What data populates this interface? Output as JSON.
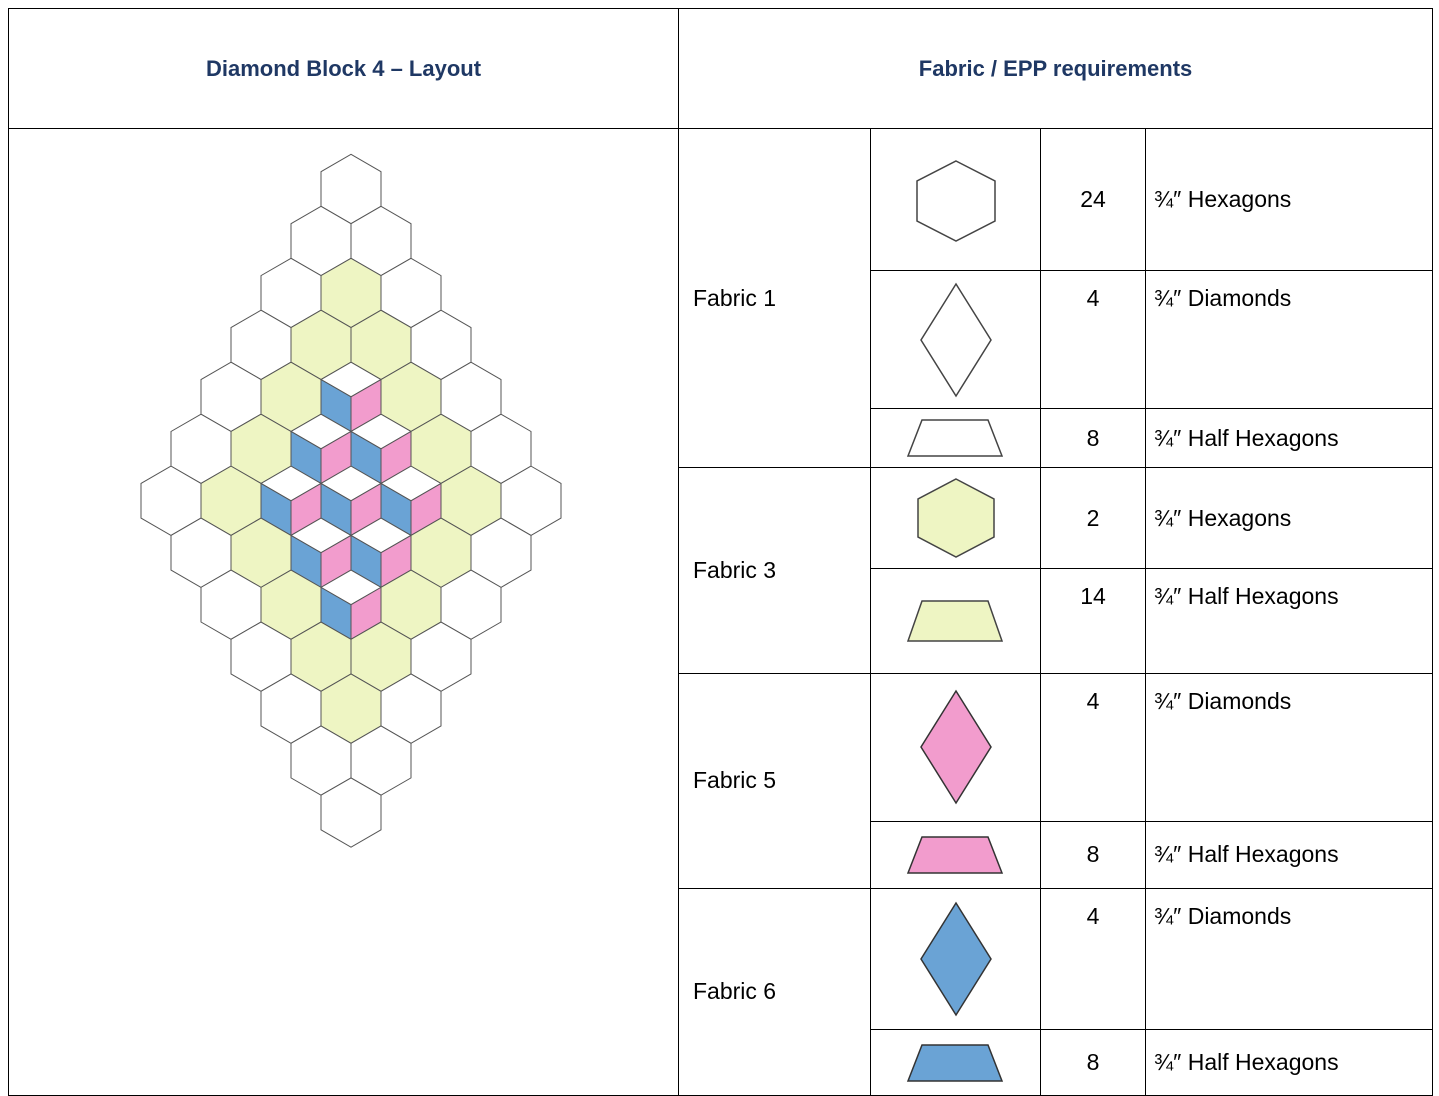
{
  "header": {
    "left_title": "Diamond Block 4 – Layout",
    "right_title": "Fabric  / EPP requirements"
  },
  "fabrics": [
    {
      "name": "Fabric 1",
      "items": [
        {
          "count": 24,
          "label": "¾″ Hexagons"
        },
        {
          "count": 4,
          "label": "¾″ Diamonds"
        },
        {
          "count": 8,
          "label": "¾″ Half Hexagons"
        }
      ]
    },
    {
      "name": "Fabric 3",
      "items": [
        {
          "count": 2,
          "label": "¾″ Hexagons"
        },
        {
          "count": 14,
          "label": "¾″ Half Hexagons"
        }
      ]
    },
    {
      "name": "Fabric 5",
      "items": [
        {
          "count": 4,
          "label": "¾″ Diamonds"
        },
        {
          "count": 8,
          "label": "¾″ Half Hexagons"
        }
      ]
    },
    {
      "name": "Fabric 6",
      "items": [
        {
          "count": 4,
          "label": "¾″ Diamonds"
        },
        {
          "count": 8,
          "label": "¾″ Half Hexagons"
        }
      ]
    }
  ]
}
